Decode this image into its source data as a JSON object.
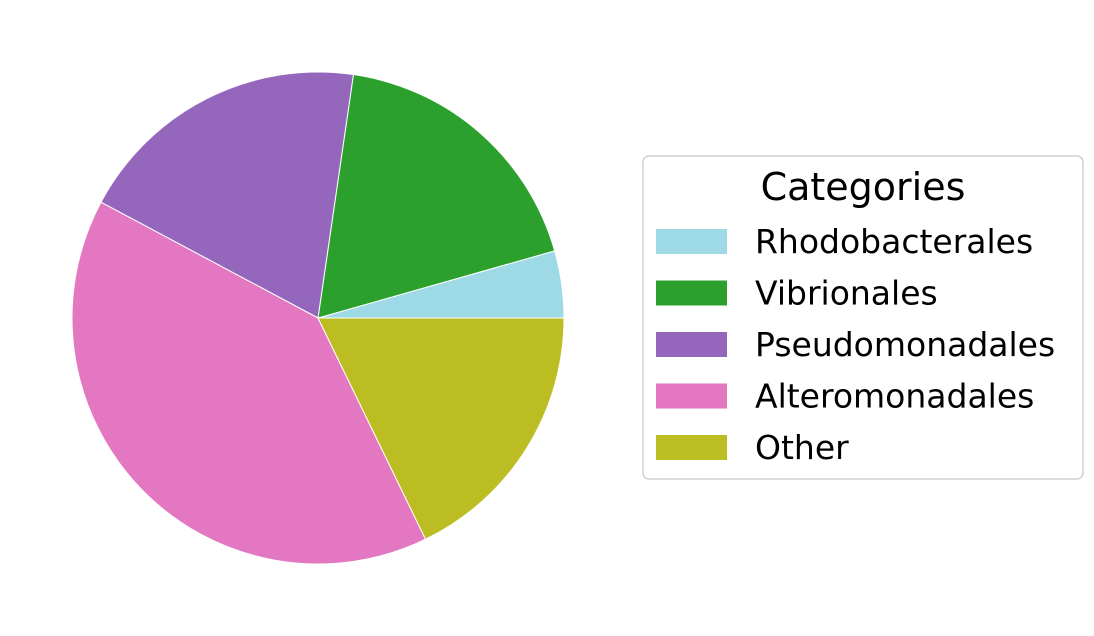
{
  "chart_data": {
    "type": "pie",
    "categories": [
      "Rhodobacterales",
      "Vibrionales",
      "Pseudomonadales",
      "Alteromonadales",
      "Other"
    ],
    "values": [
      4.4,
      18.3,
      19.5,
      40.0,
      17.8
    ],
    "colors": [
      "#9edae5",
      "#2ca02c",
      "#9467bd",
      "#e377c2",
      "#bcbd22"
    ],
    "start_angle_deg": 0,
    "direction": "counterclockwise",
    "legend": {
      "title": "Categories",
      "placement": "center-right"
    }
  }
}
